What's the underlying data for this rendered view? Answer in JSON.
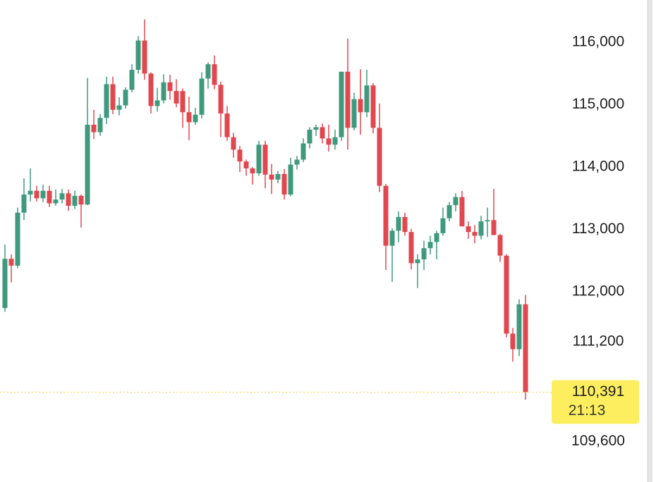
{
  "chart_data": {
    "type": "candlestick",
    "up_color": "#3f9a7d",
    "down_color": "#e0474f",
    "open": [
      111740,
      112530,
      112420,
      113270,
      113560,
      113620,
      113500,
      113620,
      113420,
      113480,
      113580,
      113380,
      113540,
      113400,
      114680,
      114560,
      114790,
      115330,
      114920,
      114990,
      115240,
      115560,
      116030,
      115500,
      114980,
      115070,
      115360,
      115220,
      115220,
      114880,
      114720,
      114840,
      115420,
      115650,
      115320,
      114860,
      114480,
      114280,
      114090,
      113980,
      113900,
      114360,
      113880,
      113800,
      113890,
      113560,
      114040,
      114120,
      114380,
      114600,
      114640,
      114460,
      114360,
      114480,
      115530,
      114630,
      115090,
      114880,
      115310,
      114630,
      113700,
      112740,
      112980,
      113200,
      112960,
      112460,
      112520,
      112700,
      112800,
      112940,
      113180,
      113390,
      113520,
      113050,
      112960,
      112900,
      113130,
      113150,
      112910,
      112580,
      111330,
      111080,
      111800
    ],
    "high": [
      112760,
      112600,
      113350,
      113820,
      113980,
      113700,
      113720,
      113700,
      113640,
      113650,
      113640,
      113620,
      113560,
      115430,
      114920,
      114850,
      115450,
      115450,
      115120,
      115280,
      115650,
      116100,
      116370,
      115520,
      115270,
      115490,
      115480,
      115410,
      115260,
      115130,
      114950,
      115520,
      115680,
      115790,
      115370,
      114980,
      114550,
      114340,
      114120,
      114000,
      114420,
      114420,
      114050,
      113940,
      113970,
      114150,
      114180,
      114460,
      114640,
      114680,
      114700,
      114680,
      114600,
      115520,
      116060,
      115190,
      115570,
      115560,
      115350,
      115020,
      113730,
      113020,
      113290,
      113270,
      113010,
      112600,
      112820,
      112900,
      112980,
      113350,
      113440,
      113580,
      113620,
      113130,
      113070,
      113220,
      113350,
      113650,
      112930,
      112600,
      111420,
      111880,
      111950
    ],
    "low": [
      111680,
      112150,
      112380,
      113150,
      113450,
      113450,
      113440,
      113360,
      113380,
      113420,
      113300,
      113330,
      113030,
      113390,
      114450,
      114500,
      114690,
      114850,
      114830,
      114940,
      115200,
      115500,
      115400,
      114860,
      114890,
      115020,
      115080,
      114960,
      114630,
      114430,
      114680,
      114780,
      115260,
      115250,
      114480,
      114420,
      114150,
      113920,
      113860,
      113720,
      113860,
      113660,
      113570,
      113740,
      113480,
      113530,
      113960,
      114080,
      114300,
      114500,
      114380,
      114250,
      114280,
      114420,
      114280,
      114590,
      114520,
      114800,
      114540,
      113600,
      112350,
      112160,
      112790,
      112900,
      112360,
      112060,
      112350,
      112600,
      112520,
      112900,
      113130,
      113290,
      113050,
      112850,
      112780,
      112840,
      112880,
      112980,
      112480,
      111270,
      110880,
      110970,
      110270
    ],
    "close": [
      112530,
      112420,
      113270,
      113560,
      113620,
      113500,
      113620,
      113420,
      113480,
      113580,
      113380,
      113540,
      113400,
      114680,
      114560,
      114790,
      115330,
      114920,
      114990,
      115240,
      115560,
      116030,
      115500,
      114980,
      115070,
      115360,
      115220,
      115020,
      114880,
      114720,
      114840,
      115420,
      115650,
      115320,
      114860,
      114480,
      114280,
      114090,
      113980,
      113900,
      114360,
      113880,
      113800,
      113890,
      113560,
      114040,
      114120,
      114380,
      114600,
      114640,
      114460,
      114360,
      114480,
      115530,
      114630,
      115090,
      114880,
      115310,
      114630,
      113700,
      112740,
      112980,
      113200,
      112960,
      112460,
      112520,
      112700,
      112800,
      112940,
      113180,
      113390,
      113520,
      113050,
      112960,
      112900,
      113130,
      113150,
      112910,
      112580,
      111330,
      111080,
      111800,
      110391
    ],
    "ylim": [
      108950,
      116680
    ],
    "yticks": [
      {
        "value": 116000,
        "label": "116,000"
      },
      {
        "value": 115000,
        "label": "115,000"
      },
      {
        "value": 114000,
        "label": "114,000"
      },
      {
        "value": 113000,
        "label": "113,000"
      },
      {
        "value": 112000,
        "label": "112,000"
      },
      {
        "value": 111200,
        "label": "111,200"
      },
      {
        "value": 109600,
        "label": "109,600"
      }
    ],
    "last_price": {
      "value": 110391,
      "label": "110,391"
    },
    "countdown": "21:13"
  }
}
